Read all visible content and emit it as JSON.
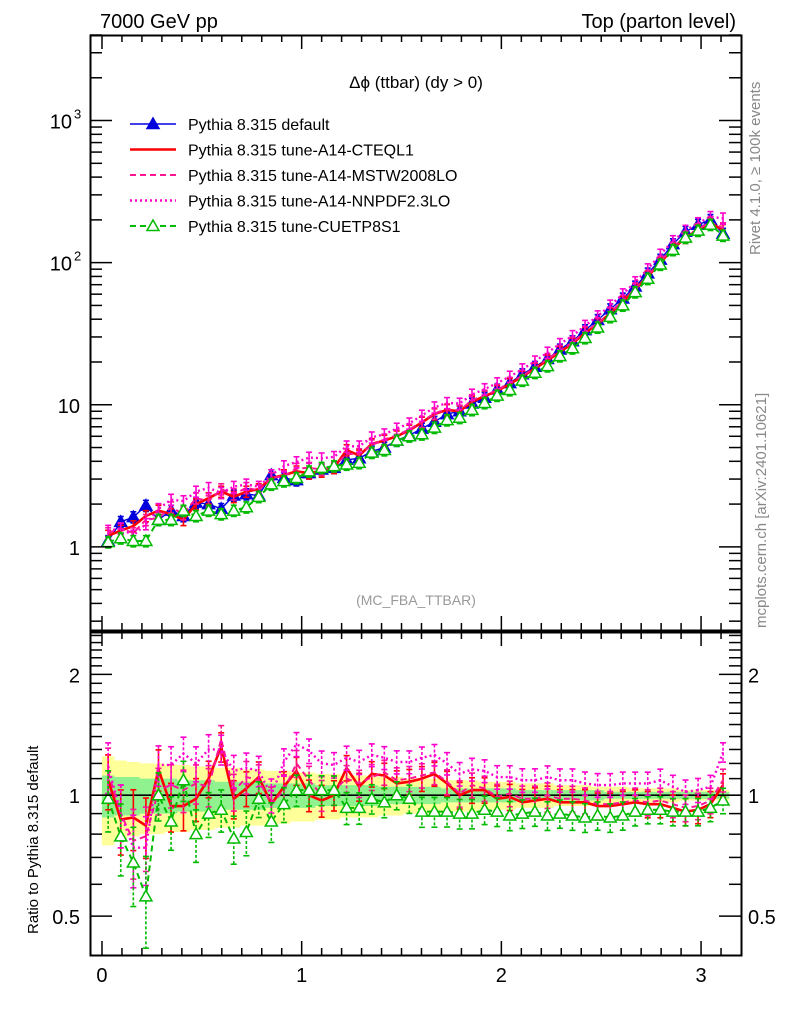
{
  "chart_data": [
    {
      "type": "line",
      "panel": "main",
      "header_left": "7000 GeV pp",
      "header_right": "Top (parton level)",
      "title": "Δϕ (ttbar) (dy > 0)",
      "analysis_label": "(MC_FBA_TTBAR)",
      "side_label_top": "Rivet 4.1.0, ≥ 100k events",
      "side_label_bottom": "mcplots.cern.ch [arXiv:2401.10621]",
      "xlabel": "",
      "ylabel": "",
      "xlim": [
        -0.06,
        3.2
      ],
      "yscale": "log",
      "ylim": [
        0.26,
        4000
      ],
      "x_ticks": [
        "0",
        "1",
        "2",
        "3"
      ],
      "x_tick_values": [
        0,
        1,
        2,
        3
      ],
      "y_ticks": [
        {
          "value": 1,
          "label": "1"
        },
        {
          "value": 10,
          "label": "10"
        },
        {
          "value": 100,
          "label": "10",
          "sup": "2"
        },
        {
          "value": 1000,
          "label": "10",
          "sup": "3"
        }
      ],
      "legend_position": "top-left",
      "x": [
        0.031,
        0.094,
        0.157,
        0.22,
        0.283,
        0.346,
        0.408,
        0.471,
        0.534,
        0.597,
        0.66,
        0.723,
        0.785,
        0.848,
        0.911,
        0.974,
        1.037,
        1.1,
        1.162,
        1.225,
        1.288,
        1.351,
        1.414,
        1.476,
        1.539,
        1.602,
        1.665,
        1.728,
        1.791,
        1.853,
        1.916,
        1.979,
        2.042,
        2.105,
        2.168,
        2.231,
        2.293,
        2.356,
        2.419,
        2.482,
        2.545,
        2.608,
        2.67,
        2.733,
        2.796,
        2.859,
        2.922,
        2.985,
        3.047,
        3.11
      ],
      "series": [
        {
          "name": "Pythia 8.315 default",
          "color": "#0000dd",
          "style": "solid",
          "marker": "triangle-filled",
          "values": [
            1.1,
            1.5,
            1.62,
            1.95,
            1.55,
            1.8,
            1.65,
            2.05,
            2.0,
            1.85,
            2.3,
            2.35,
            2.3,
            3.2,
            3.05,
            2.95,
            3.3,
            3.5,
            3.6,
            4.1,
            4.2,
            4.7,
            5.0,
            5.6,
            6.1,
            6.8,
            7.6,
            8.6,
            9.0,
            10.2,
            11.2,
            12.8,
            14.2,
            16.4,
            18.5,
            21.0,
            24.5,
            28.0,
            33.5,
            39.5,
            47.0,
            56.0,
            68.0,
            84.0,
            105.0,
            135.0,
            165.0,
            185.0,
            200.0,
            160.0
          ]
        },
        {
          "name": "Pythia 8.315 tune-A14-CTEQL1",
          "color": "#ff0000",
          "style": "solid-thick",
          "marker": "none",
          "values": [
            1.2,
            1.3,
            1.4,
            1.65,
            1.8,
            1.7,
            1.55,
            2.0,
            2.2,
            2.45,
            2.25,
            2.45,
            2.55,
            3.05,
            3.2,
            3.4,
            3.3,
            3.4,
            3.6,
            4.8,
            4.4,
            5.3,
            5.6,
            6.0,
            6.6,
            7.5,
            8.6,
            9.2,
            9.0,
            10.5,
            11.5,
            12.5,
            14.0,
            15.8,
            18.0,
            20.5,
            23.5,
            27.0,
            32.0,
            37.0,
            44.0,
            53.0,
            65.0,
            80.0,
            100.0,
            125.0,
            150.0,
            170.0,
            190.0,
            170.0
          ]
        },
        {
          "name": "Pythia 8.315 tune-A14-MSTW2008LO",
          "color": "#ff1493",
          "style": "dashed",
          "marker": "none",
          "values": [
            1.25,
            1.35,
            1.25,
            1.55,
            1.6,
            1.9,
            1.7,
            2.2,
            2.1,
            2.55,
            2.35,
            2.6,
            2.5,
            3.05,
            3.15,
            3.55,
            3.6,
            3.5,
            3.7,
            4.5,
            4.5,
            5.2,
            5.7,
            6.1,
            6.7,
            7.6,
            8.7,
            9.3,
            9.1,
            10.8,
            11.6,
            12.7,
            14.3,
            16.0,
            18.2,
            21.0,
            24.0,
            27.5,
            32.5,
            37.5,
            44.5,
            54.0,
            66.0,
            81.0,
            102.0,
            128.0,
            153.0,
            173.0,
            193.0,
            175.0
          ]
        },
        {
          "name": "Pythia 8.315 tune-A14-NNPDF2.3LO",
          "color": "#ff00cc",
          "style": "dotted",
          "marker": "none",
          "values": [
            1.3,
            1.35,
            1.2,
            1.45,
            1.85,
            2.15,
            2.1,
            2.45,
            2.6,
            2.4,
            2.65,
            2.75,
            2.65,
            3.2,
            3.7,
            3.95,
            4.25,
            4.2,
            4.3,
            5.1,
            5.1,
            5.9,
            6.2,
            6.8,
            7.4,
            8.4,
            9.6,
            10.3,
            10.2,
            11.8,
            12.9,
            14.2,
            15.8,
            17.8,
            20.2,
            23.3,
            26.8,
            30.5,
            36.0,
            42.0,
            50.0,
            60.0,
            73.0,
            90.0,
            114.0,
            142.0,
            168.0,
            190.0,
            210.0,
            205.0
          ]
        },
        {
          "name": "Pythia 8.315 tune-CUETP8S1",
          "color": "#00bb00",
          "style": "dashed",
          "marker": "triangle-open",
          "values": [
            1.08,
            1.15,
            1.1,
            1.1,
            1.55,
            1.55,
            1.8,
            1.65,
            1.8,
            1.7,
            1.8,
            1.9,
            2.25,
            2.75,
            2.9,
            3.05,
            3.4,
            3.6,
            3.7,
            3.8,
            3.9,
            4.6,
            4.8,
            5.6,
            6.0,
            6.2,
            6.9,
            7.8,
            8.1,
            9.2,
            10.3,
            11.6,
            12.7,
            14.8,
            16.8,
            18.7,
            22.0,
            25.0,
            29.5,
            35.0,
            41.5,
            50.0,
            62.0,
            77.0,
            97.0,
            123.0,
            150.0,
            168.0,
            185.0,
            155.0
          ]
        }
      ]
    },
    {
      "type": "line",
      "panel": "ratio",
      "ylabel": "Ratio to Pythia 8.315 default",
      "yscale": "log",
      "ylim": [
        0.4,
        2.55
      ],
      "xlim": [
        -0.06,
        3.2
      ],
      "y_ticks": [
        {
          "value": 0.5,
          "label": "0.5"
        },
        {
          "value": 1,
          "label": "1"
        },
        {
          "value": 2,
          "label": "2"
        }
      ],
      "x_ticks": [
        "0",
        "1",
        "2",
        "3"
      ],
      "x_tick_values": [
        0,
        1,
        2,
        3
      ],
      "reference_line": 1,
      "band_colors": {
        "stat": "#8ff28f",
        "total": "#ffff99"
      },
      "band_yellow_halfwidth": [
        0.25,
        0.22,
        0.21,
        0.2,
        0.2,
        0.19,
        0.19,
        0.18,
        0.18,
        0.17,
        0.17,
        0.16,
        0.16,
        0.15,
        0.15,
        0.14,
        0.14,
        0.13,
        0.13,
        0.12,
        0.12,
        0.12,
        0.11,
        0.11,
        0.1,
        0.1,
        0.1,
        0.09,
        0.09,
        0.09,
        0.08,
        0.08,
        0.08,
        0.07,
        0.07,
        0.07,
        0.06,
        0.06,
        0.06,
        0.05,
        0.05,
        0.05,
        0.04,
        0.04,
        0.04,
        0.04,
        0.03,
        0.03,
        0.03,
        0.03
      ],
      "band_green_halfwidth": [
        0.12,
        0.11,
        0.11,
        0.1,
        0.1,
        0.1,
        0.09,
        0.09,
        0.09,
        0.08,
        0.08,
        0.08,
        0.08,
        0.07,
        0.07,
        0.07,
        0.07,
        0.06,
        0.06,
        0.06,
        0.06,
        0.06,
        0.05,
        0.05,
        0.05,
        0.05,
        0.05,
        0.04,
        0.04,
        0.04,
        0.04,
        0.04,
        0.04,
        0.03,
        0.03,
        0.03,
        0.03,
        0.03,
        0.03,
        0.03,
        0.02,
        0.02,
        0.02,
        0.02,
        0.02,
        0.02,
        0.02,
        0.02,
        0.02,
        0.02
      ],
      "series": [
        {
          "name": "Pythia 8.315 tune-A14-CTEQL1",
          "color": "#ff0000",
          "values": [
            1.09,
            0.87,
            0.88,
            0.84,
            1.16,
            0.94,
            0.94,
            0.98,
            1.1,
            1.32,
            0.98,
            1.04,
            1.11,
            0.95,
            1.05,
            1.15,
            1.0,
            0.97,
            1.0,
            1.17,
            1.05,
            1.13,
            1.12,
            1.07,
            1.08,
            1.1,
            1.13,
            1.07,
            1.0,
            1.03,
            1.03,
            0.98,
            0.99,
            0.96,
            0.97,
            0.98,
            0.96,
            0.96,
            0.96,
            0.94,
            0.94,
            0.95,
            0.96,
            0.95,
            0.95,
            0.93,
            0.91,
            0.92,
            0.95,
            1.06
          ]
        },
        {
          "name": "Pythia 8.315 tune-A14-MSTW2008LO",
          "color": "#ff1493",
          "values": [
            1.14,
            0.9,
            0.77,
            0.79,
            1.03,
            1.06,
            1.03,
            1.07,
            1.05,
            1.38,
            1.02,
            1.11,
            1.09,
            0.95,
            1.03,
            1.2,
            1.09,
            1.0,
            1.03,
            1.1,
            1.07,
            1.11,
            1.14,
            1.09,
            1.1,
            1.12,
            1.14,
            1.08,
            1.01,
            1.06,
            1.04,
            0.99,
            1.01,
            0.98,
            0.98,
            1.0,
            0.98,
            0.98,
            0.97,
            0.95,
            0.95,
            0.96,
            0.97,
            0.96,
            0.97,
            0.95,
            0.93,
            0.94,
            0.97,
            1.09
          ]
        },
        {
          "name": "Pythia 8.315 tune-A14-NNPDF2.3LO",
          "color": "#ff00cc",
          "values": [
            1.18,
            0.9,
            0.74,
            0.74,
            1.19,
            1.19,
            1.27,
            1.2,
            1.3,
            1.3,
            1.15,
            1.17,
            1.15,
            1.0,
            1.21,
            1.34,
            1.29,
            1.2,
            1.19,
            1.24,
            1.21,
            1.26,
            1.24,
            1.21,
            1.21,
            1.24,
            1.26,
            1.2,
            1.13,
            1.16,
            1.15,
            1.11,
            1.11,
            1.09,
            1.09,
            1.11,
            1.09,
            1.09,
            1.07,
            1.06,
            1.06,
            1.07,
            1.07,
            1.07,
            1.09,
            1.05,
            1.02,
            1.03,
            1.05,
            1.28
          ]
        },
        {
          "name": "Pythia 8.315 tune-CUETP8S1",
          "color": "#00bb00",
          "values": [
            0.98,
            0.79,
            0.68,
            0.56,
            1.0,
            0.86,
            1.09,
            0.8,
            0.9,
            0.92,
            0.78,
            0.81,
            0.98,
            0.86,
            0.95,
            1.03,
            1.03,
            1.03,
            1.03,
            0.93,
            0.93,
            0.98,
            0.96,
            1.0,
            0.98,
            0.91,
            0.91,
            0.91,
            0.9,
            0.9,
            0.92,
            0.91,
            0.89,
            0.9,
            0.91,
            0.89,
            0.9,
            0.89,
            0.88,
            0.89,
            0.88,
            0.89,
            0.91,
            0.92,
            0.92,
            0.91,
            0.91,
            0.91,
            0.93,
            0.97
          ]
        }
      ]
    }
  ]
}
